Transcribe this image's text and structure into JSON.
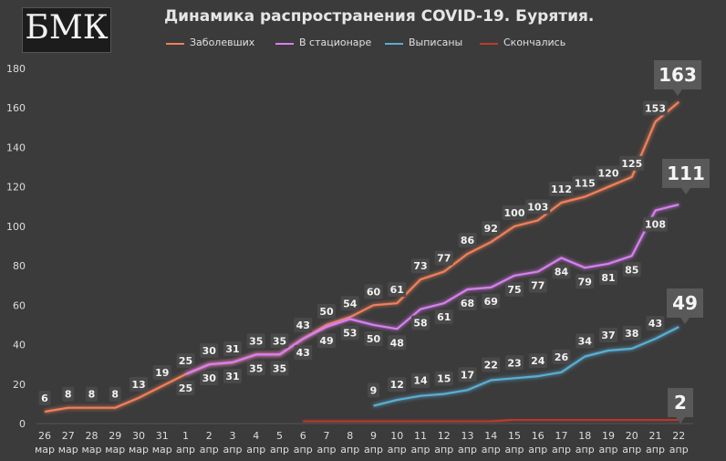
{
  "logo": {
    "text": "БМК"
  },
  "chart_data": {
    "type": "line",
    "title": "Динамика распространения COVID-19. Бурятия.",
    "xlabel": "",
    "ylabel": "",
    "ylim": [
      0,
      180
    ],
    "yticks": [
      0,
      20,
      40,
      60,
      80,
      100,
      120,
      140,
      160,
      180
    ],
    "grid": false,
    "legend_position": "top",
    "categories": [
      [
        "26",
        "мар"
      ],
      [
        "27",
        "мар"
      ],
      [
        "28",
        "мар"
      ],
      [
        "29",
        "мар"
      ],
      [
        "30",
        "мар"
      ],
      [
        "31",
        "мар"
      ],
      [
        "1",
        "апр"
      ],
      [
        "2",
        "апр"
      ],
      [
        "3",
        "апр"
      ],
      [
        "4",
        "апр"
      ],
      [
        "5",
        "апр"
      ],
      [
        "6",
        "апр"
      ],
      [
        "7",
        "апр"
      ],
      [
        "8",
        "апр"
      ],
      [
        "9",
        "апр"
      ],
      [
        "10",
        "апр"
      ],
      [
        "11",
        "апр"
      ],
      [
        "12",
        "апр"
      ],
      [
        "13",
        "апр"
      ],
      [
        "14",
        "апр"
      ],
      [
        "15",
        "апр"
      ],
      [
        "16",
        "апр"
      ],
      [
        "17",
        "апр"
      ],
      [
        "18",
        "апр"
      ],
      [
        "19",
        "апр"
      ],
      [
        "20",
        "апр"
      ],
      [
        "21",
        "апр"
      ],
      [
        "22",
        "апр"
      ]
    ],
    "series": [
      {
        "name": "Заболевших",
        "color": "#f0805a",
        "values": [
          6,
          8,
          8,
          8,
          13,
          19,
          25,
          30,
          31,
          35,
          35,
          43,
          50,
          54,
          60,
          61,
          73,
          77,
          86,
          92,
          100,
          103,
          112,
          115,
          120,
          125,
          153,
          163
        ]
      },
      {
        "name": "В стационаре",
        "color": "#d97ef2",
        "values": [
          null,
          null,
          null,
          null,
          null,
          null,
          25,
          30,
          31,
          35,
          35,
          43,
          49,
          53,
          50,
          48,
          58,
          61,
          68,
          69,
          75,
          77,
          84,
          79,
          81,
          85,
          108,
          111
        ]
      },
      {
        "name": "Выписаны",
        "color": "#5aaed3",
        "values": [
          null,
          null,
          null,
          null,
          null,
          null,
          null,
          null,
          null,
          null,
          null,
          null,
          null,
          null,
          9,
          12,
          14,
          15,
          17,
          22,
          23,
          24,
          26,
          34,
          37,
          38,
          43,
          49
        ]
      },
      {
        "name": "Скончались",
        "color": "#c0392b",
        "values": [
          null,
          null,
          null,
          null,
          null,
          null,
          null,
          null,
          null,
          null,
          null,
          1,
          1,
          1,
          1,
          1,
          1,
          1,
          1,
          1,
          2,
          2,
          2,
          2,
          2,
          2,
          2,
          2
        ]
      }
    ],
    "end_labels": {
      "Заболевших": "163",
      "В стационаре": "111",
      "Выписаны": "49",
      "Скончались": "2"
    }
  }
}
